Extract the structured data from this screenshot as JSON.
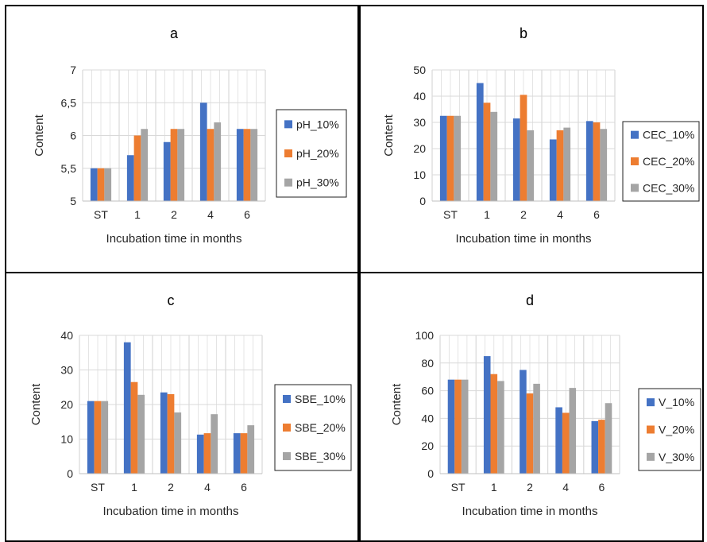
{
  "colors": {
    "s10": "#4472C4",
    "s20": "#ED7D31",
    "s30": "#A5A5A5",
    "grid": "#D9D9D9",
    "legend_border": "#1F1F1F"
  },
  "chart_data": [
    {
      "type": "bar",
      "title": "a",
      "xlabel": "Incubation time in months",
      "ylabel": "Content",
      "categories": [
        "ST",
        "1",
        "2",
        "4",
        "6"
      ],
      "ylim": [
        5,
        7
      ],
      "yticks": [
        "5",
        "5,5",
        "6",
        "6,5",
        "7"
      ],
      "legend": "right",
      "grid": true,
      "series": [
        {
          "name": "pH_10%",
          "values": [
            5.5,
            5.7,
            5.9,
            6.5,
            6.1
          ]
        },
        {
          "name": "pH_20%",
          "values": [
            5.5,
            6.0,
            6.1,
            6.1,
            6.1
          ]
        },
        {
          "name": "pH_30%",
          "values": [
            5.5,
            6.1,
            6.1,
            6.2,
            6.1
          ]
        }
      ]
    },
    {
      "type": "bar",
      "title": "b",
      "xlabel": "Incubation time in months",
      "ylabel": "Content",
      "categories": [
        "ST",
        "1",
        "2",
        "4",
        "6"
      ],
      "ylim": [
        0,
        50
      ],
      "yticks": [
        "0",
        "10",
        "20",
        "30",
        "40",
        "50"
      ],
      "legend": "right",
      "grid": true,
      "series": [
        {
          "name": "CEC_10%",
          "values": [
            32.5,
            45,
            31.5,
            23.5,
            30.5
          ]
        },
        {
          "name": "CEC_20%",
          "values": [
            32.5,
            37.5,
            40.5,
            27,
            30
          ]
        },
        {
          "name": "CEC_30%",
          "values": [
            32.5,
            34,
            27,
            28,
            27.5
          ]
        }
      ]
    },
    {
      "type": "bar",
      "title": "c",
      "xlabel": "Incubation time in months",
      "ylabel": "Content",
      "categories": [
        "ST",
        "1",
        "2",
        "4",
        "6"
      ],
      "ylim": [
        0,
        40
      ],
      "yticks": [
        "0",
        "10",
        "20",
        "30",
        "40"
      ],
      "legend": "right",
      "grid": true,
      "series": [
        {
          "name": "SBE_10%",
          "values": [
            21,
            38,
            23.5,
            11.3,
            11.7
          ]
        },
        {
          "name": "SBE_20%",
          "values": [
            21,
            26.5,
            23,
            11.7,
            11.7
          ]
        },
        {
          "name": "SBE_30%",
          "values": [
            21,
            22.8,
            17.7,
            17.2,
            14
          ]
        }
      ]
    },
    {
      "type": "bar",
      "title": "d",
      "xlabel": "Incubation time in months",
      "ylabel": "Content",
      "categories": [
        "ST",
        "1",
        "2",
        "4",
        "6"
      ],
      "ylim": [
        0,
        100
      ],
      "yticks": [
        "0",
        "20",
        "40",
        "60",
        "80",
        "100"
      ],
      "legend": "right",
      "grid": true,
      "series": [
        {
          "name": "V_10%",
          "values": [
            68,
            85,
            75,
            48,
            38
          ]
        },
        {
          "name": "V_20%",
          "values": [
            68,
            72,
            58,
            44,
            39
          ]
        },
        {
          "name": "V_30%",
          "values": [
            68,
            67,
            65,
            62,
            51
          ]
        }
      ]
    }
  ]
}
